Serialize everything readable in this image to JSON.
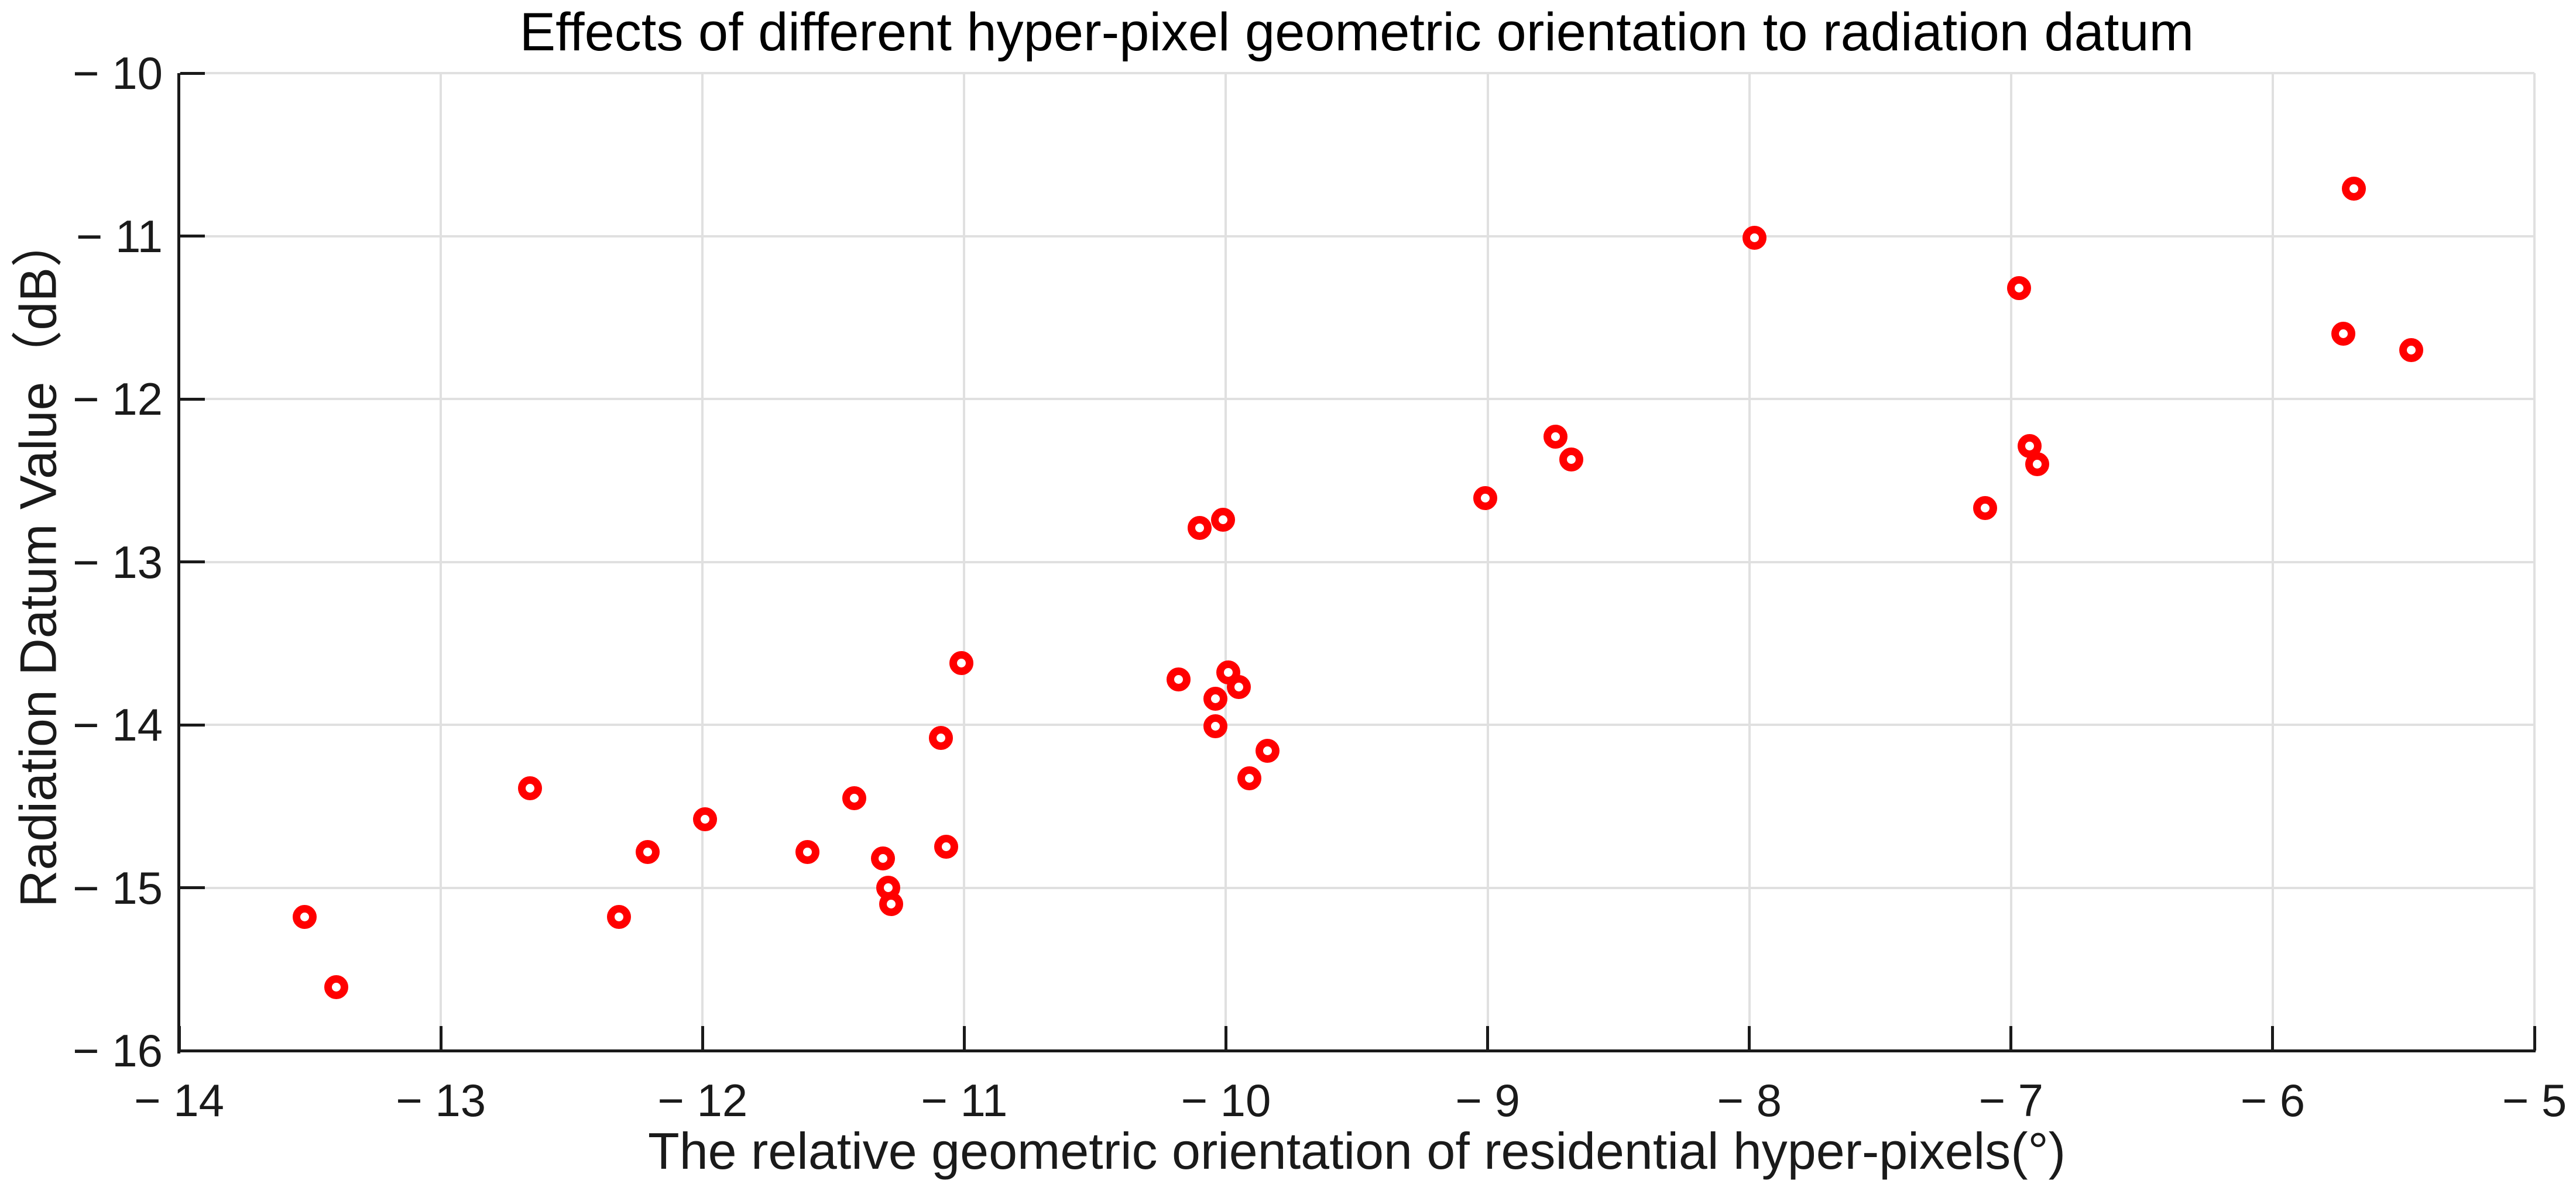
{
  "chart_data": {
    "type": "scatter",
    "title": "Effects of different hyper-pixel geometric orientation to radiation datum",
    "xlabel": "The relative geometric orientation of residential hyper-pixels(°)",
    "ylabel": "Radiation Datum Value（dB）",
    "xlim": [
      -14,
      -5
    ],
    "ylim": [
      -16,
      -10
    ],
    "grid": true,
    "legend": "none",
    "marker": {
      "shape": "open-circle",
      "color": "#ff0000"
    },
    "x_ticks": [
      {
        "value": -14,
        "label": "− 14"
      },
      {
        "value": -13,
        "label": "− 13"
      },
      {
        "value": -12,
        "label": "− 12"
      },
      {
        "value": -11,
        "label": "− 11"
      },
      {
        "value": -10,
        "label": "− 10"
      },
      {
        "value": -9,
        "label": "− 9"
      },
      {
        "value": -8,
        "label": "− 8"
      },
      {
        "value": -7,
        "label": "− 7"
      },
      {
        "value": -6,
        "label": "− 6"
      },
      {
        "value": -5,
        "label": "− 5"
      }
    ],
    "y_ticks": [
      {
        "value": -10,
        "label": "− 10"
      },
      {
        "value": -11,
        "label": "− 11"
      },
      {
        "value": -12,
        "label": "− 12"
      },
      {
        "value": -13,
        "label": "− 13"
      },
      {
        "value": -14,
        "label": "− 14"
      },
      {
        "value": -15,
        "label": "− 15"
      },
      {
        "value": -16,
        "label": "− 16"
      }
    ],
    "points": [
      {
        "x": -13.52,
        "y": -15.18
      },
      {
        "x": -13.4,
        "y": -15.61
      },
      {
        "x": -12.66,
        "y": -14.39
      },
      {
        "x": -12.32,
        "y": -15.18
      },
      {
        "x": -12.21,
        "y": -14.78
      },
      {
        "x": -11.99,
        "y": -14.58
      },
      {
        "x": -11.6,
        "y": -14.78
      },
      {
        "x": -11.42,
        "y": -14.45
      },
      {
        "x": -11.31,
        "y": -14.82
      },
      {
        "x": -11.29,
        "y": -15.0
      },
      {
        "x": -11.28,
        "y": -15.1
      },
      {
        "x": -11.07,
        "y": -14.75
      },
      {
        "x": -11.09,
        "y": -14.08
      },
      {
        "x": -11.01,
        "y": -13.62
      },
      {
        "x": -10.18,
        "y": -13.72
      },
      {
        "x": -10.1,
        "y": -12.79
      },
      {
        "x": -10.01,
        "y": -12.74
      },
      {
        "x": -9.99,
        "y": -13.68
      },
      {
        "x": -9.95,
        "y": -13.77
      },
      {
        "x": -10.04,
        "y": -13.84
      },
      {
        "x": -10.04,
        "y": -14.01
      },
      {
        "x": -9.84,
        "y": -14.16
      },
      {
        "x": -9.91,
        "y": -14.33
      },
      {
        "x": -9.01,
        "y": -12.61
      },
      {
        "x": -8.74,
        "y": -12.23
      },
      {
        "x": -8.68,
        "y": -12.37
      },
      {
        "x": -7.98,
        "y": -11.01
      },
      {
        "x": -7.1,
        "y": -12.67
      },
      {
        "x": -6.97,
        "y": -11.32
      },
      {
        "x": -6.93,
        "y": -12.29
      },
      {
        "x": -6.9,
        "y": -12.4
      },
      {
        "x": -5.69,
        "y": -10.71
      },
      {
        "x": -5.73,
        "y": -11.6
      },
      {
        "x": -5.47,
        "y": -11.7
      }
    ],
    "colors": {
      "marker": "#ff0000",
      "axis": "#1a1a1a",
      "grid": "#e0e0e0",
      "tick_label": "#1a1a1a",
      "title": "#000000"
    }
  }
}
